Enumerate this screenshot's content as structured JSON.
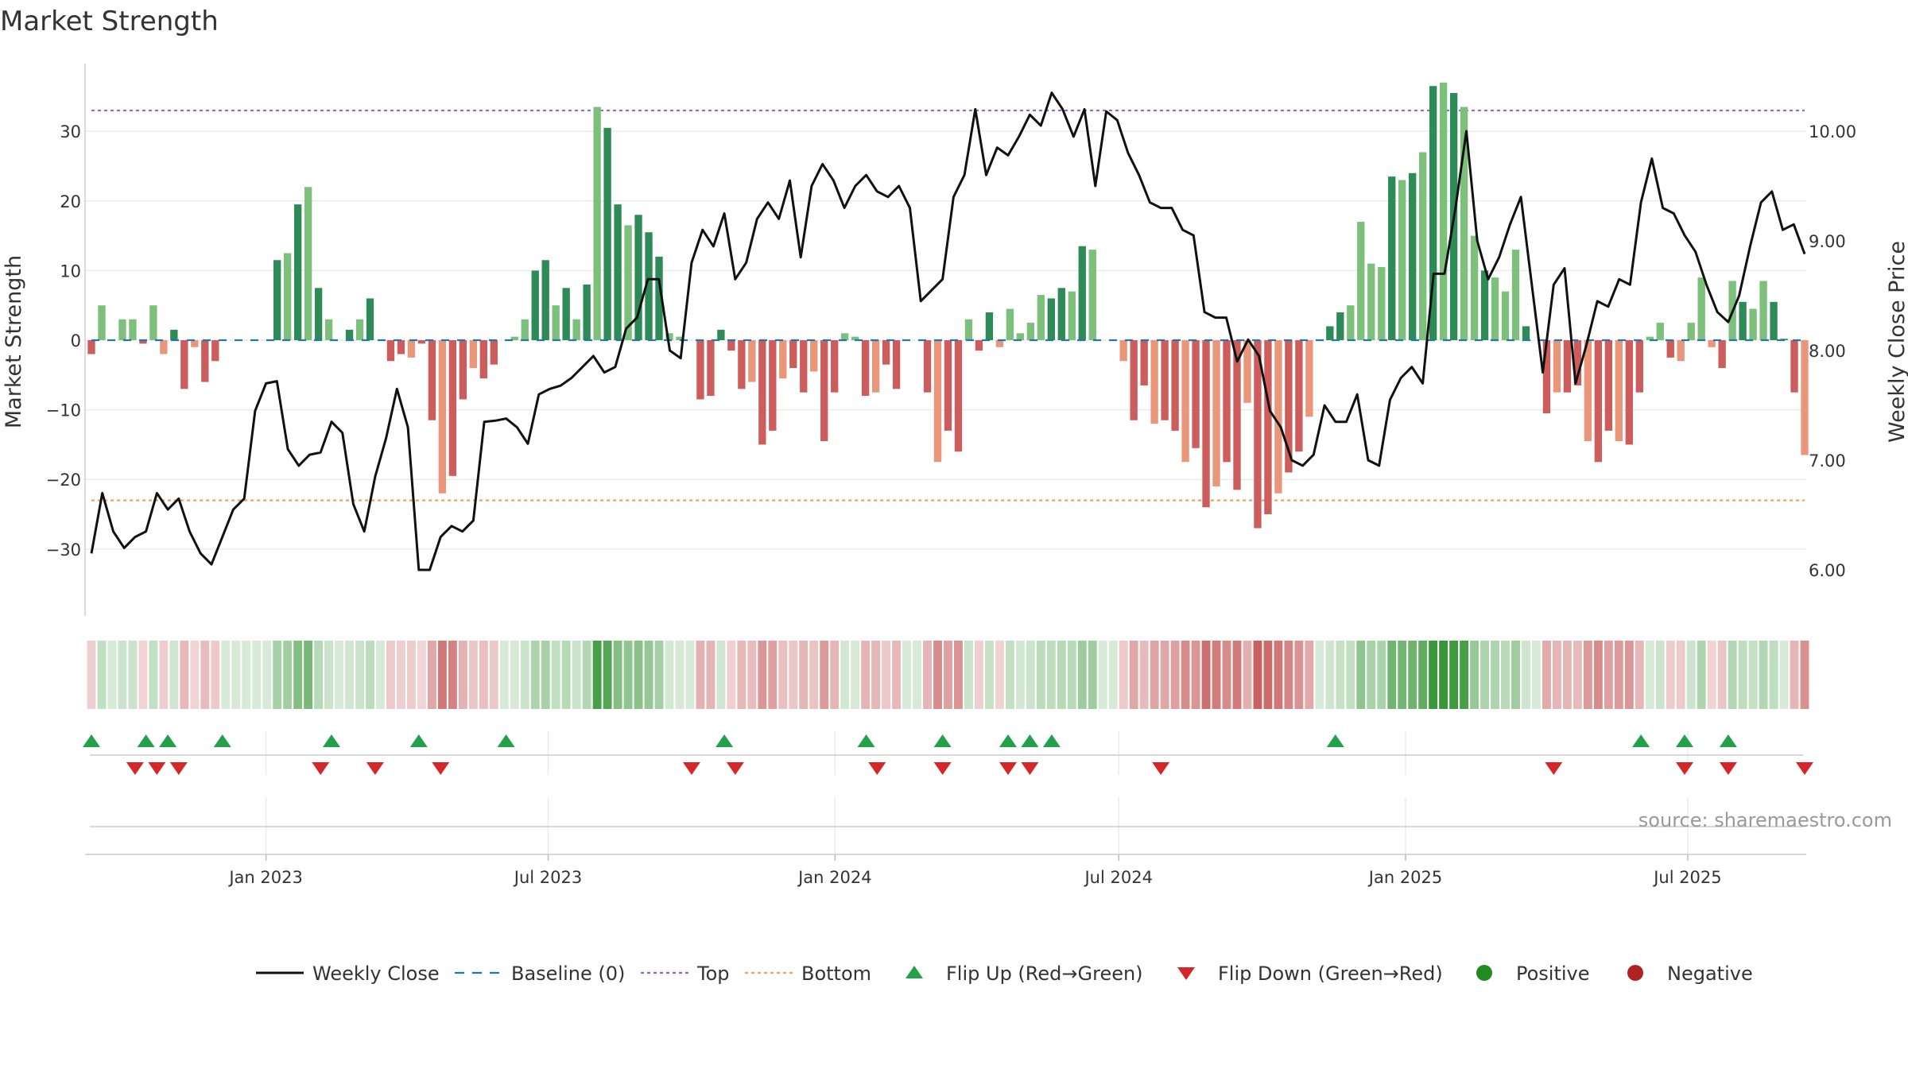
{
  "chart_data": {
    "type": "bar",
    "title": "Market Strength",
    "ylabel_left": "Market Strength",
    "ylabel_right": "Weekly Close Price",
    "source": "source: sharemaestro.com",
    "left_axis": {
      "ylim": [
        -40,
        38
      ],
      "ticks": [
        -30,
        -20,
        -10,
        0,
        10,
        20,
        30
      ],
      "tick_labels": [
        "−30",
        "−20",
        "−10",
        "0",
        "10",
        "20",
        "30"
      ]
    },
    "right_axis": {
      "ylim": [
        5.6,
        10.7
      ],
      "ticks": [
        6,
        7,
        8,
        9,
        10
      ],
      "tick_labels": [
        "6.00",
        "7.00",
        "8.00",
        "9.00",
        "10.00"
      ]
    },
    "x_dates": {
      "start": "2022-09-11",
      "end": "2025-09-14"
    },
    "x_ticks": [
      {
        "date": "2023-01-01",
        "label": "Jan 2023"
      },
      {
        "date": "2023-07-01",
        "label": "Jul 2023"
      },
      {
        "date": "2024-01-01",
        "label": "Jan 2024"
      },
      {
        "date": "2024-07-01",
        "label": "Jul 2024"
      },
      {
        "date": "2025-01-01",
        "label": "Jan 2025"
      },
      {
        "date": "2025-07-01",
        "label": "Jul 2025"
      }
    ],
    "top_line": 33,
    "bottom_line": -23,
    "strength_values": [
      -2,
      5,
      0,
      3,
      3,
      -0.5,
      5,
      -2,
      1.5,
      -7,
      -1,
      -6,
      -3,
      0,
      0,
      0,
      0,
      0,
      11.5,
      12.5,
      19.5,
      22,
      7.5,
      3,
      0,
      1.5,
      3,
      6,
      0,
      -3,
      -2,
      -2.5,
      -0.5,
      -11.5,
      -22,
      -19.5,
      -8.5,
      -4,
      -5.5,
      -3.5,
      0,
      0.5,
      3,
      10,
      11.5,
      5,
      7.5,
      3,
      8,
      33.5,
      30.5,
      19.5,
      16.5,
      18,
      15.5,
      12,
      1,
      0.5,
      0,
      -8.5,
      -8,
      1.5,
      -1.5,
      -7,
      -6,
      -15,
      -13,
      -5.5,
      -4,
      -7.5,
      -4.5,
      -14.5,
      -7.5,
      1,
      0.5,
      -8,
      -7.5,
      -3.5,
      -7,
      0,
      0,
      -7.5,
      -17.5,
      -13,
      -16,
      3,
      -1.5,
      4,
      -1,
      4.5,
      1,
      2.5,
      6.5,
      6,
      7.5,
      7,
      13.5,
      13,
      0,
      0,
      -3,
      -11.5,
      -6.5,
      -12,
      -11.5,
      -13,
      -17.5,
      -15.5,
      -24,
      -21,
      -17.5,
      -21.5,
      -9,
      -27,
      -25,
      -22,
      -19,
      -16,
      -11,
      0,
      2,
      4,
      5,
      17,
      11,
      10.5,
      23.5,
      23,
      24,
      27,
      36.5,
      37,
      35.5,
      33.5,
      15,
      10,
      9,
      7,
      13,
      2,
      0,
      -10.5,
      -7.5,
      -7.5,
      -6.5,
      -14.5,
      -17.5,
      -13,
      -14.5,
      -15,
      -7.5,
      0.5,
      2.5,
      -2.5,
      -3,
      2.5,
      9,
      -1,
      -4,
      8.5,
      5.5,
      4.5,
      8.5,
      5.5,
      0.2,
      -7.5,
      -16.5
    ],
    "series": [
      {
        "name": "Weekly Close",
        "values": [
          6.15,
          6.7,
          6.35,
          6.2,
          6.3,
          6.35,
          6.7,
          6.55,
          6.65,
          6.35,
          6.15,
          6.05,
          6.3,
          6.55,
          6.65,
          7.45,
          7.7,
          7.72,
          7.1,
          6.95,
          7.05,
          7.07,
          7.35,
          7.25,
          6.6,
          6.35,
          6.85,
          7.2,
          7.65,
          7.3,
          6.0,
          6.0,
          6.3,
          6.4,
          6.35,
          6.45,
          7.35,
          7.36,
          7.38,
          7.3,
          7.15,
          7.6,
          7.65,
          7.68,
          7.75,
          7.85,
          7.95,
          7.8,
          7.85,
          8.2,
          8.3,
          8.65,
          8.65,
          8.0,
          7.93,
          8.8,
          9.1,
          8.95,
          9.25,
          8.65,
          8.8,
          9.2,
          9.35,
          9.2,
          9.55,
          8.85,
          9.5,
          9.7,
          9.55,
          9.3,
          9.5,
          9.6,
          9.45,
          9.4,
          9.5,
          9.3,
          8.45,
          8.55,
          8.65,
          9.4,
          9.6,
          10.2,
          9.6,
          9.85,
          9.78,
          9.95,
          10.15,
          10.05,
          10.35,
          10.2,
          9.95,
          10.2,
          9.5,
          10.18,
          10.1,
          9.8,
          9.6,
          9.35,
          9.3,
          9.3,
          9.1,
          9.05,
          8.35,
          8.3,
          8.3,
          7.9,
          8.1,
          7.95,
          7.45,
          7.3,
          7.0,
          6.95,
          7.05,
          7.5,
          7.35,
          7.35,
          7.6,
          7.0,
          6.95,
          7.55,
          7.75,
          7.85,
          7.7,
          8.7,
          8.7,
          9.3,
          10.0,
          9.0,
          8.65,
          8.85,
          9.15,
          9.4,
          8.6,
          7.8,
          8.6,
          8.75,
          7.7,
          8.05,
          8.45,
          8.4,
          8.65,
          8.6,
          9.35,
          9.75,
          9.3,
          9.25,
          9.05,
          8.9,
          8.6,
          8.35,
          8.26,
          8.5,
          8.95,
          9.35,
          9.45,
          9.1,
          9.15,
          8.88
        ]
      },
      {
        "name": "Baseline (0)",
        "values": [
          0
        ]
      },
      {
        "name": "Top",
        "values": [
          33
        ]
      },
      {
        "name": "Bottom",
        "values": [
          -23
        ]
      },
      {
        "name": "Flip Up (Red→Green)",
        "x": [
          "2022-09-11",
          "2022-10-16",
          "2022-10-30",
          "2022-12-04",
          "2023-02-12",
          "2023-04-09",
          "2023-06-04",
          "2023-10-22",
          "2024-01-21",
          "2024-03-10",
          "2024-04-21",
          "2024-05-05",
          "2024-05-19",
          "2024-11-17",
          "2025-06-01",
          "2025-06-29",
          "2025-07-27"
        ]
      },
      {
        "name": "Flip Down (Green→Red)",
        "x": [
          "2022-10-09",
          "2022-10-23",
          "2022-11-06",
          "2023-02-05",
          "2023-03-12",
          "2023-04-23",
          "2023-10-01",
          "2023-10-29",
          "2024-01-28",
          "2024-03-10",
          "2024-04-21",
          "2024-05-05",
          "2024-07-28",
          "2025-04-06",
          "2025-06-29",
          "2025-07-27",
          "2025-09-14"
        ]
      }
    ],
    "legend": {
      "placement": "bottom",
      "items": [
        {
          "label": "Weekly Close",
          "kind": "line",
          "color": "#111111"
        },
        {
          "label": "Baseline (0)",
          "kind": "dash",
          "color": "#1f77b4"
        },
        {
          "label": "Top",
          "kind": "dot",
          "color": "#9467bd"
        },
        {
          "label": "Bottom",
          "kind": "dot",
          "color": "#f0a060"
        },
        {
          "label": "Flip Up (Red→Green)",
          "kind": "tri-up",
          "color": "#22a04a"
        },
        {
          "label": "Flip Down (Green→Red)",
          "kind": "tri-down",
          "color": "#d62728"
        },
        {
          "label": "Positive",
          "kind": "circle",
          "color": "#228b22"
        },
        {
          "label": "Negative",
          "kind": "circle",
          "color": "#b22222"
        }
      ]
    },
    "colors": {
      "pos_dark": "#2e8b57",
      "pos_light": "#7cc07c",
      "neg_dark": "#cd5c5c",
      "neg_light": "#e9967a",
      "baseline": "#1f77b4",
      "top": "#9467bd",
      "bottom": "#f0a060",
      "price": "#111111",
      "flip_up": "#22a04a",
      "flip_down": "#d62728"
    },
    "grid": true
  }
}
